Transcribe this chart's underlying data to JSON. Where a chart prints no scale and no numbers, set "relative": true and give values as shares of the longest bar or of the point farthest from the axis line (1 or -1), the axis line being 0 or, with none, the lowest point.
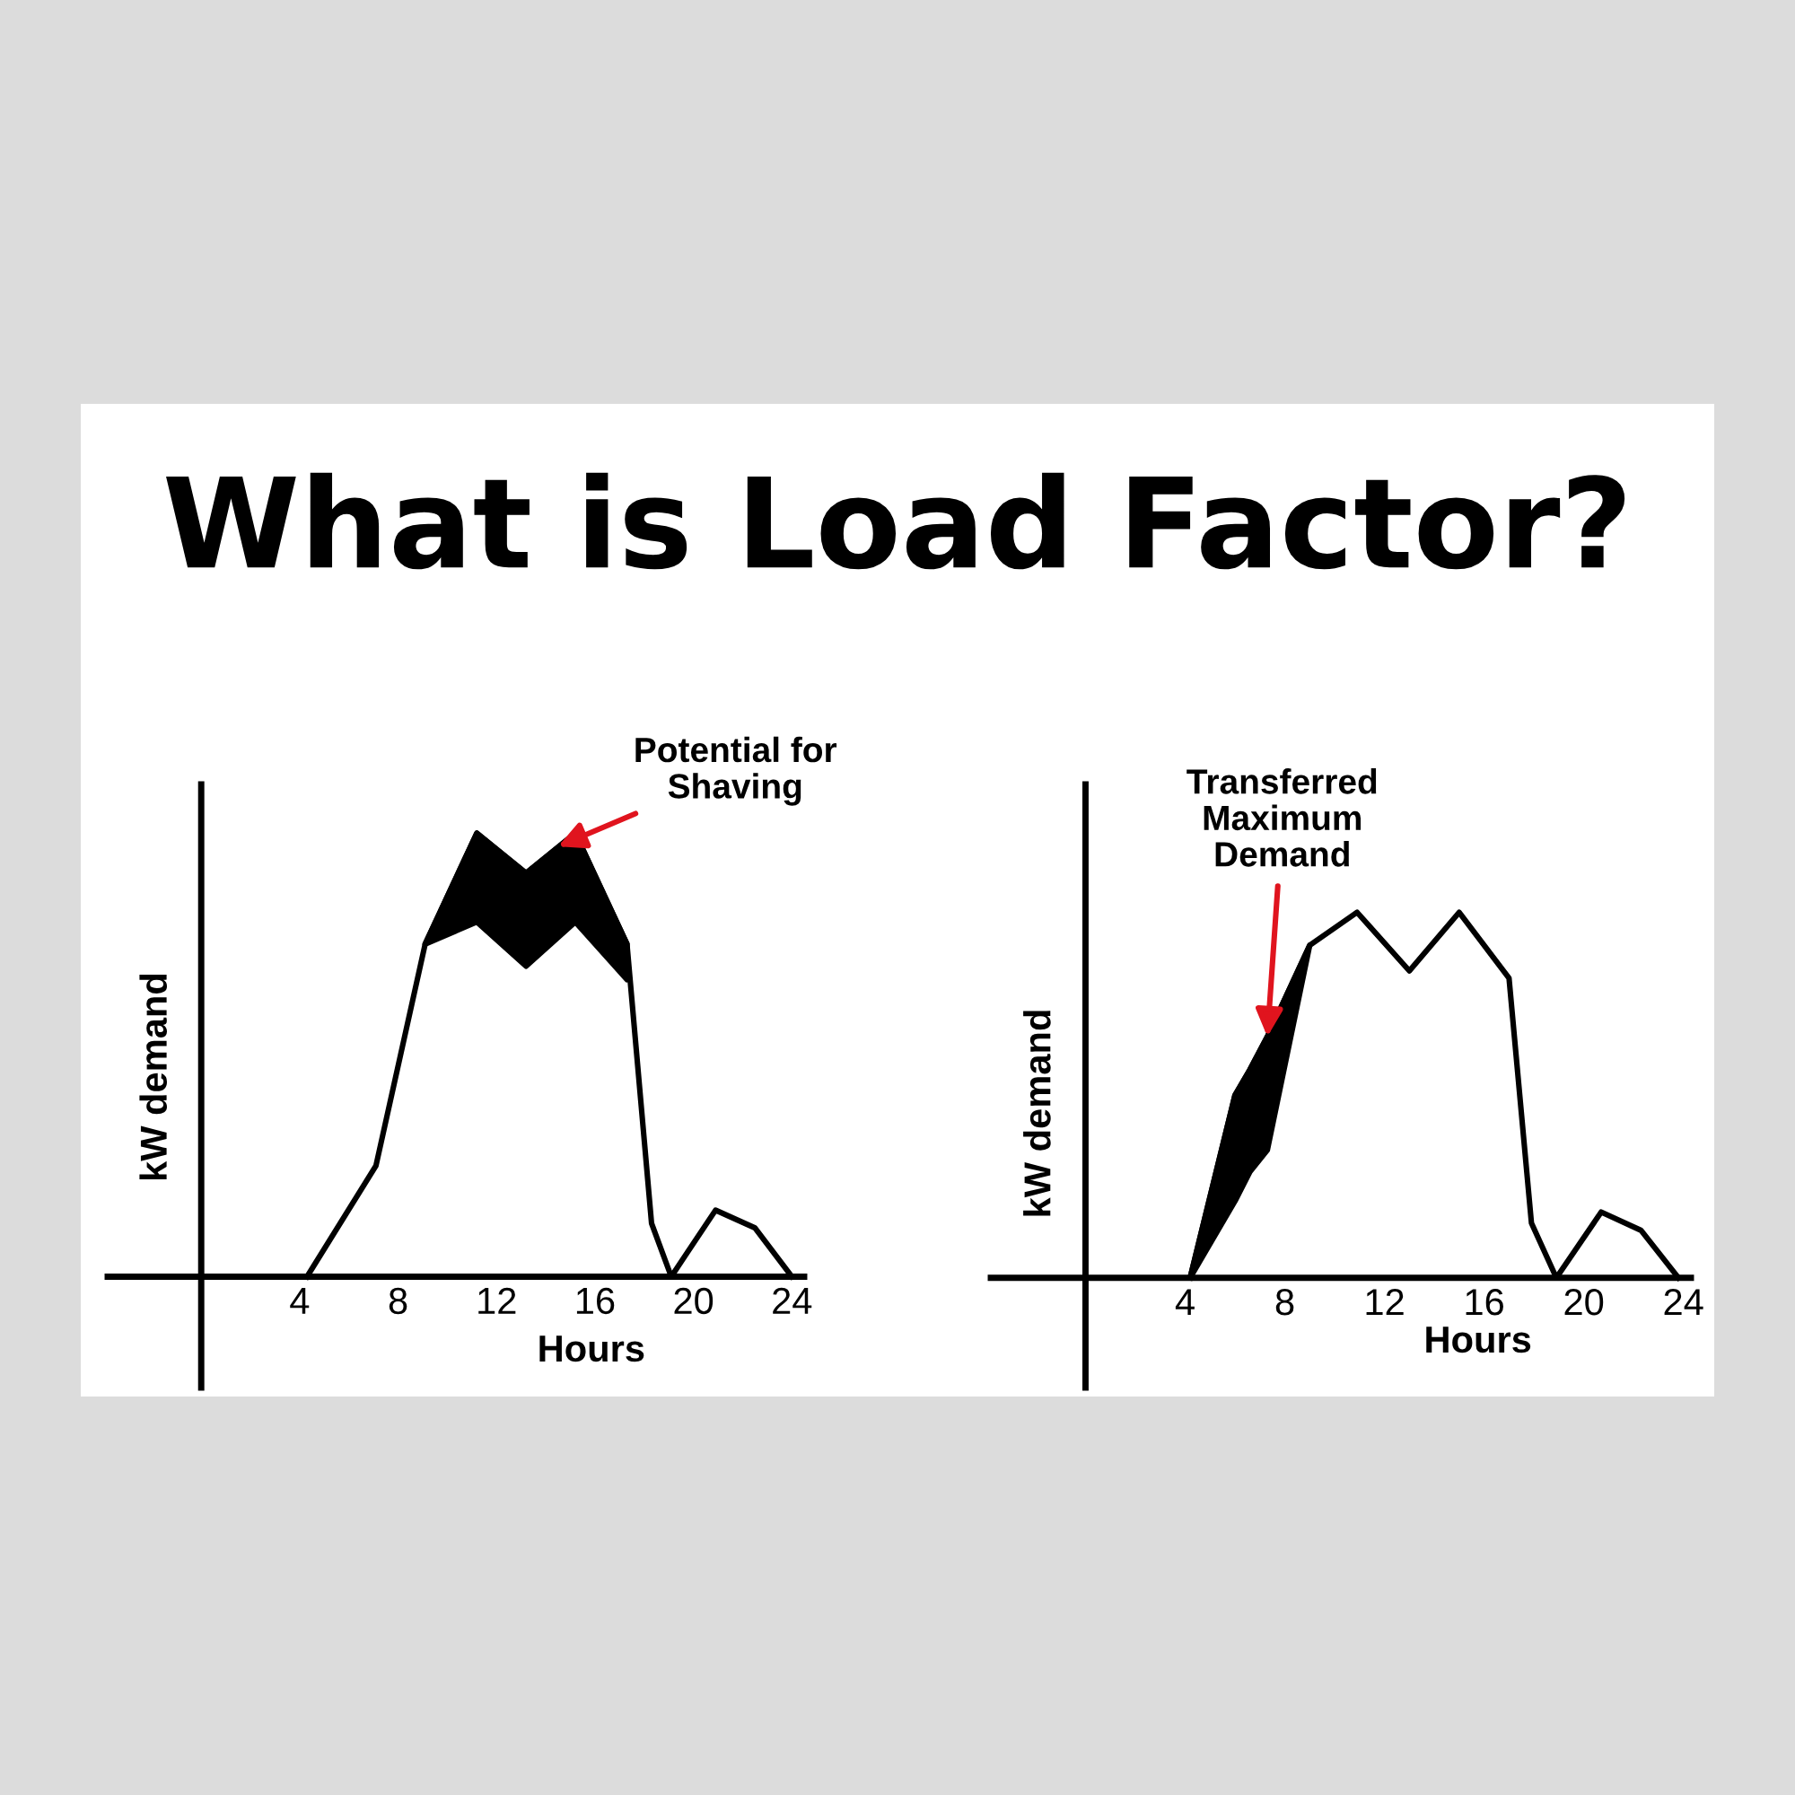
{
  "chart_data": [
    {
      "type": "line",
      "title": "What is Load Factor?",
      "relative": true,
      "xlabel": "Hours",
      "ylabel": "kW demand",
      "xlim": [
        -3.8,
        24.5
      ],
      "xticks": [
        4,
        8,
        12,
        16,
        20,
        24
      ],
      "tick_labels": "x",
      "grid": false,
      "legend": false,
      "marker": "none",
      "line_style": "solid",
      "annotations": [
        {
          "text": "Potential for\nShaving",
          "x": 14.5,
          "y": 0.97
        }
      ],
      "series": [
        {
          "color": "#000000",
          "x": [
            4.3,
            7.1,
            9.1,
            11.2,
            13.2,
            15.2,
            17.3,
            18.3,
            19.1,
            20.9,
            22.5,
            24
          ],
          "values": [
            0,
            0.25,
            0.75,
            1,
            0.91,
            1,
            0.75,
            0.12,
            0,
            0.15,
            0.11,
            0
          ],
          "lower": [
            null,
            null,
            0.75,
            0.8,
            0.7,
            0.8,
            0.67,
            null,
            null,
            null,
            null,
            null
          ],
          "upper": [
            null,
            null,
            0.75,
            1,
            0.91,
            1,
            0.75,
            null,
            null,
            null,
            null,
            null
          ]
        }
      ]
    },
    {
      "type": "line",
      "relative": true,
      "xlabel": "Hours",
      "ylabel": "kW demand",
      "xlim": [
        -3.8,
        24.3
      ],
      "xticks": [
        4,
        8,
        12,
        16,
        20,
        24
      ],
      "tick_labels": "x",
      "grid": false,
      "legend": false,
      "marker": "none",
      "line_style": "solid",
      "annotations": [
        {
          "text": "Transferred\nMaximum\nDemand",
          "x": 7.3,
          "y": 0.66
        }
      ],
      "series": [
        {
          "color": "#000000",
          "x": [
            4.2,
            6.0,
            6.6,
            7.3,
            9.0,
            10.9,
            13.0,
            15.0,
            17.0,
            17.9,
            18.9,
            20.7,
            22.3,
            23.8
          ],
          "values": [
            0,
            0.5,
            0.57,
            0.66,
            0.91,
            1,
            0.84,
            1,
            0.82,
            0.15,
            0,
            0.18,
            0.13,
            0
          ],
          "lower": [
            0,
            0.21,
            0.29,
            0.35,
            0.91,
            null,
            null,
            null,
            null,
            null,
            null,
            null,
            null,
            null
          ],
          "upper": [
            0,
            0.5,
            0.57,
            0.66,
            0.91,
            null,
            null,
            null,
            null,
            null,
            null,
            null,
            null,
            null
          ]
        }
      ]
    }
  ]
}
